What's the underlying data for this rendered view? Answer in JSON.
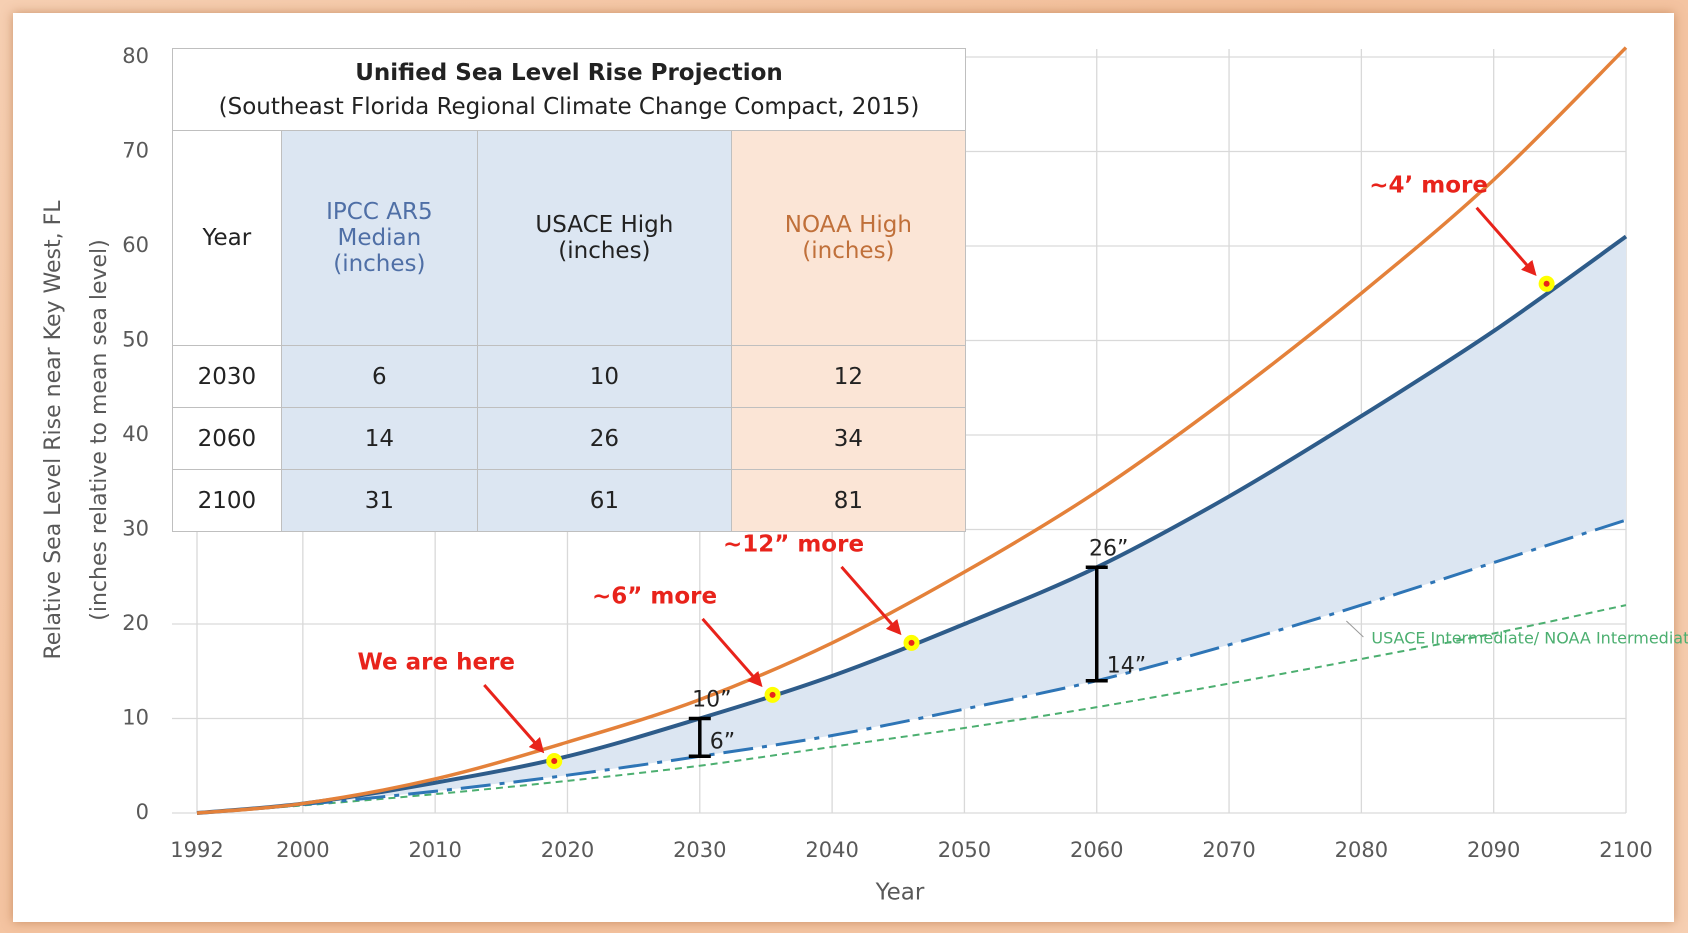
{
  "chart_data": {
    "type": "line",
    "x_label": "Year",
    "y_label": "Relative Sea Level Rise near Key West, FL",
    "y_sublabel": "(inches relative to mean sea level)",
    "xlim": [
      1992,
      2100
    ],
    "xticks": [
      1992,
      2000,
      2010,
      2020,
      2030,
      2040,
      2050,
      2060,
      2070,
      2080,
      2090,
      2100
    ],
    "ylim": [
      0,
      80
    ],
    "yticks": [
      0,
      10,
      20,
      30,
      40,
      50,
      60,
      70,
      80
    ],
    "grid": true,
    "x": [
      1992,
      2000,
      2010,
      2020,
      2030,
      2040,
      2050,
      2060,
      2070,
      2080,
      2090,
      2100
    ],
    "series": [
      {
        "color": "#e4813a",
        "values": [
          0,
          1,
          3.6,
          7.5,
          12,
          18,
          25.5,
          34,
          44,
          55,
          67,
          81
        ]
      },
      {
        "color": "#2e5c8a",
        "values": [
          0,
          1,
          3.2,
          6,
          10,
          14.5,
          20,
          26,
          33.5,
          42,
          51,
          61
        ]
      },
      {
        "color": "#2e75b6",
        "values": [
          0,
          0.9,
          2.3,
          4,
          6,
          8.2,
          11,
          14,
          17.8,
          22,
          26.5,
          31
        ]
      },
      {
        "name": "USACE Intermediate/ NOAA Intermediate Low",
        "color": "#4caf70",
        "values": [
          0,
          0.8,
          2,
          3.4,
          5,
          7,
          9,
          11.2,
          13.7,
          16.3,
          19,
          22
        ]
      }
    ],
    "fill_color": "#dce6f2",
    "annotations": [
      {
        "text": "We are here",
        "x": 2019,
        "y": 5.5
      },
      {
        "text": "~6” more",
        "x": 2035.5,
        "y": 12.5
      },
      {
        "text": "~12” more",
        "x": 2046,
        "y": 18
      },
      {
        "text": "~4’ more",
        "x": 2094,
        "y": 56
      }
    ],
    "brackets": [
      {
        "x": 2030,
        "low": 6,
        "high": 10,
        "low_label": "6”",
        "high_label": "10”"
      },
      {
        "x": 2060,
        "low": 14,
        "high": 26,
        "low_label": "14”",
        "high_label": "26”"
      }
    ],
    "table": {
      "title": "Unified Sea Level Rise Projection",
      "subtitle": "(Southeast Florida Regional Climate Change Compact, 2015)",
      "columns": [
        "Year",
        "IPCC AR5\nMedian\n(inches)",
        "USACE High\n(inches)",
        "NOAA High\n(inches)"
      ],
      "rows": [
        [
          2030,
          6,
          10,
          12
        ],
        [
          2060,
          14,
          26,
          34
        ],
        [
          2100,
          31,
          61,
          81
        ]
      ]
    }
  }
}
